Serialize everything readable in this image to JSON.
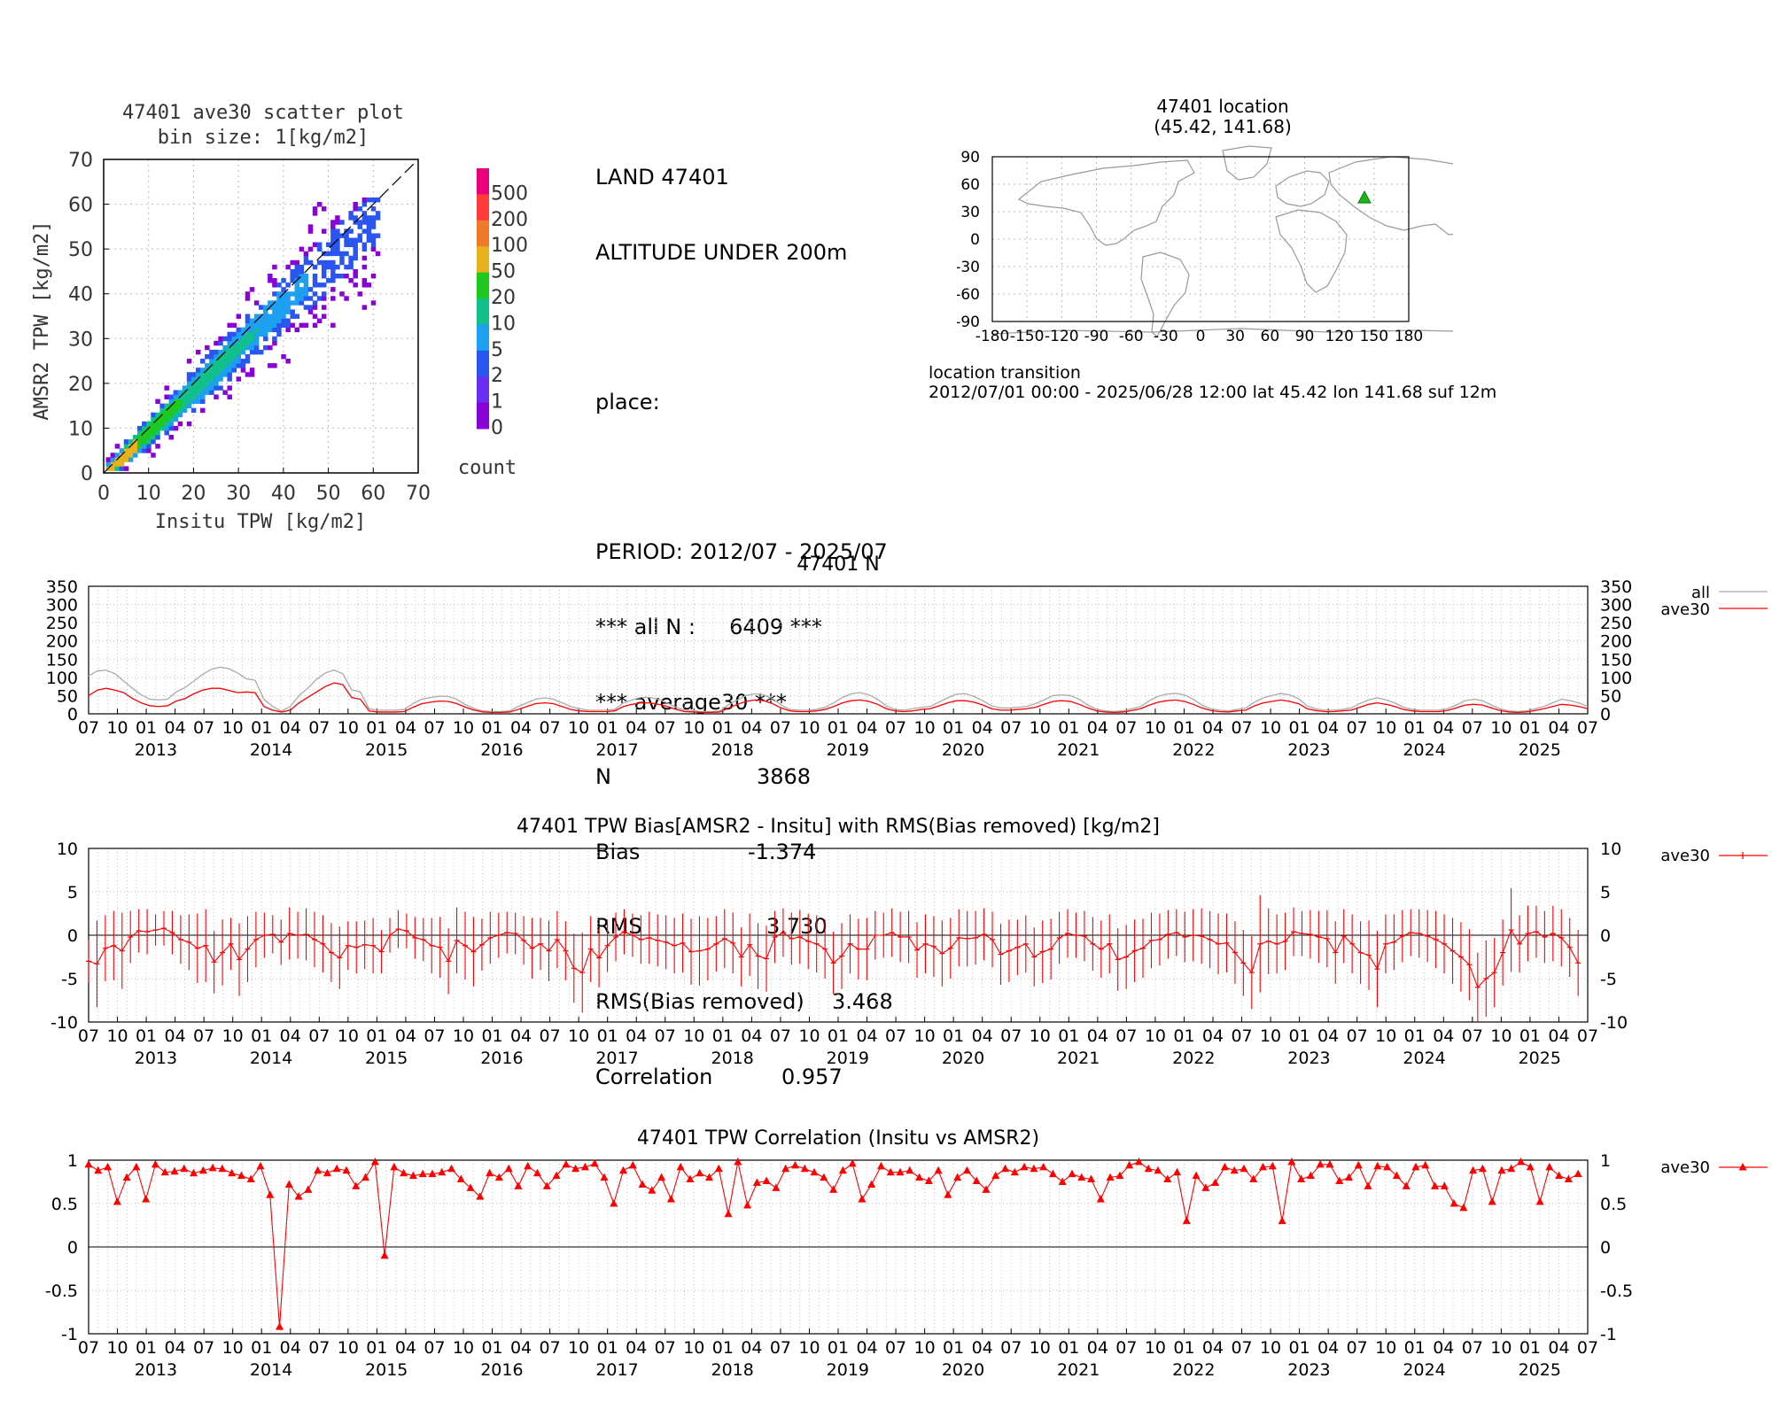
{
  "scatter": {
    "title_line1": "47401 ave30 scatter plot",
    "title_line2": "bin size: 1[kg/m2]",
    "xlabel": "Insitu TPW [kg/m2]",
    "ylabel": "AMSR2 TPW [kg/m2]",
    "ticks": [
      "0",
      "10",
      "20",
      "30",
      "40",
      "50",
      "60",
      "70"
    ],
    "colorbar_label": "count",
    "colorbar_levels": [
      "500",
      "200",
      "100",
      "50",
      "20",
      "10",
      "5",
      "2",
      "1",
      "0"
    ],
    "colorbar_colors": [
      "#e8007f",
      "#ff3b3b",
      "#f07a2a",
      "#e8b21a",
      "#1ec81e",
      "#12c08a",
      "#1ea0f0",
      "#2a55f0",
      "#6a2ef0",
      "#8a00d8"
    ]
  },
  "stats": {
    "line1": "LAND 47401",
    "line2": "ALTITUDE UNDER 200m",
    "line3": "place:",
    "period": "PERIOD: 2012/07 - 2025/07",
    "all_n": "*** all N :     6409 ***",
    "avg_header": "*** average30 ***",
    "n_label": "N",
    "n_value": "3868",
    "bias_label": "Bias",
    "bias_value": "-1.374",
    "rms_label": "RMS",
    "rms_value": "3.730",
    "rmsb_label": "RMS(Bias removed)",
    "rmsb_value": "3.468",
    "corr_label": "Correlation",
    "corr_value": "0.957"
  },
  "location": {
    "title_line1": "47401 location",
    "title_line2": "(45.42, 141.68)",
    "lat": 45.42,
    "lon": 141.68,
    "yticks": [
      "90",
      "60",
      "30",
      "0",
      "-30",
      "-60",
      "-90"
    ],
    "xticks": [
      "-180",
      "-150",
      "-120",
      "-90",
      "-60",
      "-30",
      "0",
      "30",
      "60",
      "90",
      "120",
      "150",
      "180"
    ],
    "transition_label": "location transition",
    "transition_text": "2012/07/01 00:00 - 2025/06/28 12:00 lat 45.42 lon 141.68 suf 12m"
  },
  "timeseries_axis": {
    "month_labels": [
      "07",
      "10",
      "01",
      "04",
      "07",
      "10",
      "01",
      "04",
      "07",
      "10",
      "01",
      "04",
      "07",
      "10",
      "01",
      "04",
      "07",
      "10",
      "01",
      "04",
      "07",
      "10",
      "01",
      "04",
      "07",
      "10",
      "01",
      "04",
      "07",
      "10",
      "01",
      "04",
      "07",
      "10",
      "01",
      "04",
      "07",
      "10",
      "01",
      "04",
      "07",
      "10",
      "01",
      "04",
      "07",
      "10",
      "01",
      "04",
      "07",
      "10",
      "01",
      "04",
      "07"
    ],
    "year_labels": [
      "2013",
      "2014",
      "2015",
      "2016",
      "2017",
      "2018",
      "2019",
      "2020",
      "2021",
      "2022",
      "2023",
      "2024",
      "2025"
    ]
  },
  "chart_data": [
    {
      "type": "line",
      "title": "47401 N",
      "yticks": [
        "350",
        "300",
        "250",
        "200",
        "150",
        "100",
        "50",
        "0"
      ],
      "ylim": [
        0,
        350
      ],
      "x_start": "2012-07",
      "series": [
        {
          "name": "all",
          "color": "#aaaaaa",
          "values": [
            104,
            118,
            120,
            110,
            90,
            70,
            52,
            40,
            38,
            40,
            60,
            72,
            90,
            108,
            122,
            128,
            124,
            112,
            96,
            92,
            40,
            20,
            8,
            20,
            50,
            70,
            95,
            112,
            120,
            110,
            66,
            60,
            14,
            10,
            10,
            10,
            12,
            28,
            40,
            45,
            48,
            48,
            40,
            25,
            14,
            8,
            6,
            6,
            8,
            20,
            30,
            40,
            44,
            40,
            30,
            20,
            14,
            10,
            10,
            10,
            12,
            30,
            38,
            45,
            45,
            40,
            30,
            18,
            10,
            8,
            6,
            6,
            8,
            25,
            38,
            50,
            55,
            52,
            42,
            24,
            12,
            10,
            10,
            12,
            18,
            30,
            45,
            55,
            58,
            52,
            40,
            22,
            12,
            10,
            14,
            18,
            20,
            32,
            44,
            54,
            55,
            48,
            36,
            22,
            16,
            16,
            18,
            20,
            28,
            38,
            50,
            52,
            50,
            40,
            24,
            12,
            8,
            6,
            8,
            14,
            20,
            36,
            48,
            54,
            56,
            52,
            40,
            24,
            14,
            10,
            8,
            12,
            16,
            32,
            44,
            50,
            56,
            52,
            42,
            22,
            14,
            10,
            10,
            12,
            16,
            28,
            38,
            44,
            38,
            30,
            18,
            12,
            10,
            10,
            10,
            14,
            24,
            36,
            40,
            36,
            24,
            14,
            8,
            6,
            8,
            14,
            20,
            30,
            40,
            36,
            30,
            20
          ]
        },
        {
          "name": "ave30",
          "color": "#ff0000",
          "values": [
            50,
            65,
            70,
            65,
            58,
            42,
            30,
            22,
            20,
            22,
            35,
            42,
            55,
            65,
            70,
            70,
            64,
            58,
            60,
            58,
            20,
            10,
            5,
            10,
            30,
            45,
            60,
            75,
            85,
            80,
            45,
            40,
            8,
            5,
            5,
            5,
            6,
            18,
            28,
            32,
            35,
            34,
            28,
            18,
            10,
            5,
            4,
            4,
            5,
            12,
            20,
            28,
            30,
            28,
            20,
            12,
            8,
            6,
            6,
            6,
            8,
            20,
            26,
            30,
            30,
            26,
            20,
            12,
            6,
            5,
            4,
            4,
            5,
            16,
            26,
            34,
            38,
            36,
            28,
            16,
            8,
            6,
            6,
            8,
            12,
            20,
            30,
            36,
            38,
            34,
            26,
            14,
            8,
            6,
            8,
            12,
            14,
            22,
            30,
            36,
            36,
            32,
            24,
            14,
            10,
            10,
            12,
            14,
            18,
            26,
            34,
            36,
            34,
            26,
            16,
            8,
            5,
            4,
            5,
            9,
            14,
            24,
            32,
            36,
            38,
            34,
            26,
            16,
            9,
            6,
            5,
            8,
            10,
            22,
            30,
            34,
            38,
            34,
            28,
            14,
            9,
            6,
            6,
            8,
            10,
            18,
            26,
            30,
            26,
            20,
            12,
            8,
            6,
            6,
            6,
            9,
            16,
            24,
            26,
            24,
            16,
            9,
            5,
            4,
            5,
            9,
            14,
            20,
            26,
            24,
            20,
            14
          ]
        }
      ]
    },
    {
      "type": "line",
      "title": "47401 TPW Bias[AMSR2 - Insitu] with RMS(Bias removed) [kg/m2]",
      "yticks": [
        "10",
        "5",
        "0",
        "-5",
        "-10"
      ],
      "ylim": [
        -10,
        10
      ],
      "x_start": "2012-07",
      "legend": "ave30",
      "series": [
        {
          "name": "ave30",
          "color": "#ff0000",
          "values": [
            -3.0,
            -3.3,
            -1.5,
            -1.2,
            -1.8,
            -0.2,
            0.5,
            0.4,
            0.6,
            0.8,
            0.3,
            -0.5,
            -0.8,
            -1.5,
            -1.2,
            -3.1,
            -2.0,
            -1.0,
            -2.8,
            -1.6,
            -0.5,
            0.0,
            0.1,
            -0.8,
            0.2,
            0.0,
            0.1,
            -0.5,
            -1.0,
            -2.0,
            -2.6,
            -1.2,
            -1.4,
            -1.1,
            -1.2,
            -1.9,
            0.0,
            0.7,
            0.5,
            -0.3,
            -0.5,
            -1.2,
            -1.4,
            -3.0,
            -0.6,
            -1.2,
            -1.9,
            -1.1,
            -0.3,
            0.0,
            0.3,
            0.2,
            -0.6,
            -1.5,
            -1.0,
            -1.8,
            -0.5,
            -1.8,
            -3.8,
            -4.3,
            -1.6,
            -2.6,
            -1.2,
            -0.2,
            0.4,
            0.0,
            -0.5,
            -0.3,
            -0.6,
            -0.8,
            -1.2,
            -0.9,
            -1.9,
            -1.8,
            -1.6,
            -1.0,
            -0.4,
            -0.9,
            -2.5,
            -1.1,
            -2.4,
            -2.7,
            -0.2,
            0.3,
            -0.4,
            -0.2,
            -0.7,
            -1.0,
            -1.6,
            -3.2,
            -2.4,
            -1.0,
            -1.6,
            -1.6,
            0.0,
            0.0,
            0.3,
            -0.2,
            -0.2,
            -1.7,
            -1.0,
            -1.3,
            -2.1,
            -1.5,
            -0.3,
            -0.4,
            -0.3,
            0.1,
            -0.5,
            -2.2,
            -1.8,
            -1.4,
            -1.0,
            -2.5,
            -1.9,
            -1.6,
            -0.3,
            0.2,
            0.0,
            -0.1,
            -1.0,
            -1.6,
            -1.0,
            -2.8,
            -2.5,
            -1.8,
            -1.5,
            -0.6,
            -0.5,
            0.1,
            0.3,
            -0.2,
            0.0,
            -0.1,
            -0.5,
            -1.0,
            -0.9,
            -2.0,
            -3.2,
            -4.3,
            -1.0,
            -0.7,
            -1.0,
            -0.7,
            0.4,
            0.2,
            0.1,
            -0.2,
            -0.4,
            -2.0,
            -0.1,
            -1.0,
            -2.0,
            -2.3,
            -3.9,
            -1.0,
            -0.8,
            -0.1,
            0.3,
            0.2,
            -0.1,
            -0.5,
            -1.0,
            -1.8,
            -2.5,
            -3.4,
            -6.0,
            -5.0,
            -4.3,
            -2.0,
            0.6,
            -1.0,
            0.2,
            0.4,
            -0.2,
            0.2,
            -0.3,
            -1.4,
            -3.2
          ]
        },
        {
          "name": "rms",
          "color": "#ff0000",
          "values": [
            2.5,
            5.0,
            3.8,
            4.0,
            4.4,
            3.0,
            2.5,
            2.6,
            1.8,
            2.0,
            2.5,
            2.8,
            3.2,
            4.0,
            4.2,
            3.6,
            3.8,
            3.0,
            4.2,
            3.8,
            3.2,
            2.6,
            2.2,
            2.6,
            3.0,
            2.7,
            3.0,
            3.2,
            3.3,
            3.4,
            3.6,
            2.8,
            3.0,
            2.8,
            3.2,
            2.5,
            2.0,
            2.2,
            2.0,
            2.4,
            2.5,
            3.2,
            3.5,
            3.8,
            3.8,
            3.9,
            4.0,
            3.0,
            3.0,
            2.6,
            2.4,
            2.4,
            2.8,
            3.5,
            3.0,
            3.5,
            3.3,
            3.4,
            4.0,
            4.6,
            3.8,
            3.4,
            3.0,
            2.8,
            2.6,
            2.5,
            2.8,
            3.0,
            3.0,
            3.1,
            3.2,
            3.4,
            3.8,
            4.0,
            3.6,
            3.2,
            3.4,
            3.5,
            3.4,
            3.6,
            3.8,
            3.8,
            3.0,
            2.8,
            3.0,
            3.1,
            3.2,
            3.3,
            3.4,
            3.6,
            3.8,
            3.4,
            3.5,
            3.6,
            2.8,
            2.6,
            2.8,
            2.9,
            3.0,
            3.2,
            3.4,
            3.5,
            3.8,
            3.5,
            3.3,
            3.2,
            3.1,
            3.0,
            3.2,
            3.5,
            3.6,
            3.2,
            3.3,
            3.4,
            3.6,
            3.5,
            3.0,
            2.8,
            2.6,
            2.9,
            3.1,
            3.3,
            3.4,
            3.6,
            3.7,
            3.6,
            3.4,
            3.2,
            3.0,
            2.8,
            2.7,
            2.9,
            3.0,
            3.2,
            3.3,
            3.5,
            3.4,
            3.6,
            3.8,
            4.2,
            5.6,
            3.8,
            3.4,
            3.3,
            2.8,
            2.6,
            2.8,
            3.0,
            3.3,
            3.6,
            3.1,
            3.4,
            3.6,
            4.0,
            4.4,
            3.4,
            3.2,
            3.0,
            2.7,
            2.8,
            3.0,
            3.3,
            3.4,
            3.8,
            4.0,
            4.1,
            4.0,
            4.4,
            4.0,
            3.8,
            4.8,
            3.3,
            3.2,
            3.0,
            3.0,
            3.2,
            3.3,
            3.4,
            3.8
          ]
        }
      ]
    },
    {
      "type": "line",
      "title": "47401 TPW Correlation (Insitu vs AMSR2)",
      "yticks": [
        "1",
        "0.5",
        "0",
        "-0.5",
        "-1"
      ],
      "ylim": [
        -1,
        1
      ],
      "x_start": "2012-07",
      "legend": "ave30",
      "series": [
        {
          "name": "ave30",
          "color": "#ff0000",
          "values": [
            0.95,
            0.88,
            0.92,
            0.52,
            0.8,
            0.92,
            0.55,
            0.95,
            0.86,
            0.87,
            0.9,
            0.85,
            0.88,
            0.91,
            0.9,
            0.85,
            0.82,
            0.78,
            0.93,
            0.6,
            -0.92,
            0.72,
            0.58,
            0.66,
            0.88,
            0.85,
            0.9,
            0.88,
            0.7,
            0.8,
            0.98,
            -0.1,
            0.92,
            0.85,
            0.82,
            0.84,
            0.84,
            0.86,
            0.9,
            0.78,
            0.68,
            0.58,
            0.85,
            0.8,
            0.9,
            0.7,
            0.93,
            0.85,
            0.7,
            0.82,
            0.95,
            0.9,
            0.92,
            0.96,
            0.8,
            0.5,
            0.88,
            0.94,
            0.72,
            0.65,
            0.8,
            0.55,
            0.92,
            0.78,
            0.85,
            0.8,
            0.9,
            0.38,
            0.98,
            0.48,
            0.74,
            0.76,
            0.68,
            0.9,
            0.94,
            0.9,
            0.86,
            0.8,
            0.66,
            0.88,
            0.96,
            0.55,
            0.72,
            0.93,
            0.86,
            0.86,
            0.88,
            0.8,
            0.76,
            0.88,
            0.6,
            0.8,
            0.88,
            0.76,
            0.66,
            0.82,
            0.9,
            0.86,
            0.92,
            0.9,
            0.92,
            0.84,
            0.75,
            0.84,
            0.8,
            0.78,
            0.55,
            0.8,
            0.82,
            0.94,
            0.98,
            0.9,
            0.88,
            0.78,
            0.86,
            0.3,
            0.82,
            0.68,
            0.74,
            0.92,
            0.88,
            0.9,
            0.78,
            0.92,
            0.93,
            0.3,
            0.98,
            0.78,
            0.82,
            0.95,
            0.95,
            0.76,
            0.8,
            0.94,
            0.7,
            0.93,
            0.92,
            0.82,
            0.7,
            0.92,
            0.94,
            0.7,
            0.7,
            0.5,
            0.45,
            0.88,
            0.9,
            0.52,
            0.88,
            0.9,
            0.98,
            0.92,
            0.52,
            0.92,
            0.82,
            0.78,
            0.84
          ]
        }
      ]
    }
  ]
}
